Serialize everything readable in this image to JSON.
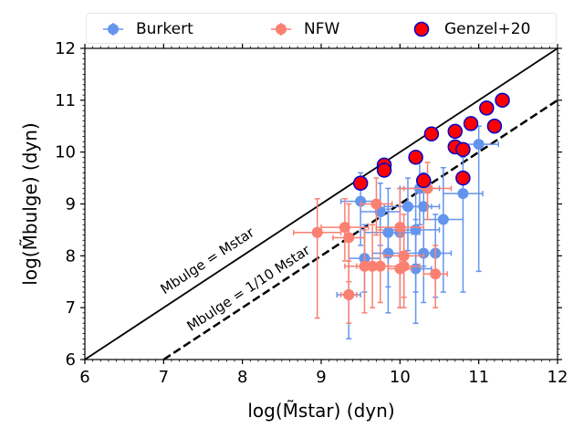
{
  "chart_data": {
    "type": "scatter",
    "title": "",
    "xlabel": "log(M̃star) (dyn)",
    "ylabel": "log(M̃bulge) (dyn)",
    "xlim": [
      6,
      12
    ],
    "ylim": [
      6,
      12
    ],
    "xticks": [
      6,
      7,
      8,
      9,
      10,
      11,
      12
    ],
    "yticks": [
      6,
      7,
      8,
      9,
      10,
      11,
      12
    ],
    "legend": [
      {
        "name": "Burkert",
        "color": "#6495ED"
      },
      {
        "name": "NFW",
        "color": "#FA8072"
      },
      {
        "name": "Genzel+20",
        "color": "#FF0000",
        "edge": "#0000CC"
      }
    ],
    "reference_lines": [
      {
        "label_main": "M",
        "label_sub": "bulge",
        "label_eq": " = M",
        "label_sub2": "star",
        "ratio": 1,
        "style": "solid"
      },
      {
        "label_main": "M",
        "label_sub": "bulge",
        "label_eq": " = ",
        "frac_num": "1",
        "frac_den": "10",
        "label_mid": " M",
        "label_sub2": "star",
        "ratio": 0.1,
        "style": "dashed"
      }
    ],
    "series": [
      {
        "name": "Burkert",
        "color": "#6495ED",
        "points": [
          {
            "x": 9.35,
            "y": 7.25,
            "xerr": 0.15,
            "ylo": 6.4,
            "yhi": 8.3
          },
          {
            "x": 9.5,
            "y": 9.05,
            "xerr": 0.25,
            "ylo": 8.2,
            "yhi": 9.6
          },
          {
            "x": 9.55,
            "y": 7.95,
            "xerr": 0.2,
            "ylo": 7.3,
            "yhi": 8.6
          },
          {
            "x": 9.75,
            "y": 8.85,
            "xerr": 0.25,
            "ylo": 8.2,
            "yhi": 9.4
          },
          {
            "x": 9.85,
            "y": 8.45,
            "xerr": 0.3,
            "ylo": 7.4,
            "yhi": 9.3
          },
          {
            "x": 9.85,
            "y": 8.05,
            "xerr": 0.2,
            "ylo": 6.9,
            "yhi": 8.9
          },
          {
            "x": 10.0,
            "y": 8.45,
            "xerr": 0.25,
            "ylo": 7.0,
            "yhi": 9.3
          },
          {
            "x": 10.1,
            "y": 8.95,
            "xerr": 0.3,
            "ylo": 8.1,
            "yhi": 9.5
          },
          {
            "x": 10.2,
            "y": 8.5,
            "xerr": 0.3,
            "ylo": 7.3,
            "yhi": 9.3
          },
          {
            "x": 10.2,
            "y": 7.75,
            "xerr": 0.2,
            "ylo": 6.7,
            "yhi": 8.7
          },
          {
            "x": 10.25,
            "y": 9.3,
            "xerr": 0.25,
            "ylo": 8.6,
            "yhi": 9.9
          },
          {
            "x": 10.3,
            "y": 8.05,
            "xerr": 0.25,
            "ylo": 7.1,
            "yhi": 8.9
          },
          {
            "x": 10.3,
            "y": 8.95,
            "xerr": 0.2,
            "ylo": 7.8,
            "yhi": 9.6
          },
          {
            "x": 10.45,
            "y": 8.05,
            "xerr": 0.2,
            "ylo": 7.2,
            "yhi": 8.8
          },
          {
            "x": 10.55,
            "y": 8.7,
            "xerr": 0.25,
            "ylo": 7.3,
            "yhi": 9.7
          },
          {
            "x": 10.8,
            "y": 9.2,
            "xerr": 0.25,
            "ylo": 7.3,
            "yhi": 9.9
          },
          {
            "x": 11.0,
            "y": 10.15,
            "xerr": 0.25,
            "ylo": 7.7,
            "yhi": 10.5
          }
        ]
      },
      {
        "name": "NFW",
        "color": "#FA8072",
        "points": [
          {
            "x": 8.95,
            "y": 8.45,
            "xerr": 0.3,
            "ylo": 6.8,
            "yhi": 9.1
          },
          {
            "x": 9.3,
            "y": 8.55,
            "xerr": 0.3,
            "ylo": 7.9,
            "yhi": 9.1
          },
          {
            "x": 9.35,
            "y": 7.25,
            "xerr": 0.1,
            "ylo": 6.7,
            "yhi": 7.9
          },
          {
            "x": 9.35,
            "y": 8.35,
            "xerr": 0.2,
            "ylo": 7.5,
            "yhi": 9.0
          },
          {
            "x": 9.55,
            "y": 7.8,
            "xerr": 0.2,
            "ylo": 6.9,
            "yhi": 8.5
          },
          {
            "x": 9.65,
            "y": 7.8,
            "xerr": 0.35,
            "ylo": 7.0,
            "yhi": 8.6
          },
          {
            "x": 9.7,
            "y": 9.0,
            "xerr": 0.2,
            "ylo": 8.4,
            "yhi": 9.5
          },
          {
            "x": 9.75,
            "y": 7.8,
            "xerr": 0.3,
            "ylo": 7.1,
            "yhi": 8.5
          },
          {
            "x": 10.0,
            "y": 7.75,
            "xerr": 0.15,
            "ylo": 7.0,
            "yhi": 8.4
          },
          {
            "x": 10.0,
            "y": 8.55,
            "xerr": 0.3,
            "ylo": 7.8,
            "yhi": 9.3
          },
          {
            "x": 10.05,
            "y": 8.0,
            "xerr": 0.25,
            "ylo": 7.2,
            "yhi": 8.8
          },
          {
            "x": 10.05,
            "y": 7.8,
            "xerr": 0.2,
            "ylo": 7.0,
            "yhi": 8.5
          },
          {
            "x": 10.35,
            "y": 9.3,
            "xerr": 0.3,
            "ylo": 8.7,
            "yhi": 9.8
          },
          {
            "x": 10.45,
            "y": 7.65,
            "xerr": 0.15,
            "ylo": 7.0,
            "yhi": 8.2
          }
        ]
      },
      {
        "name": "Genzel+20",
        "color": "#FF0000",
        "edge": "#0000CC",
        "points": [
          {
            "x": 9.5,
            "y": 9.4
          },
          {
            "x": 9.8,
            "y": 9.75
          },
          {
            "x": 9.8,
            "y": 9.65
          },
          {
            "x": 10.2,
            "y": 9.9
          },
          {
            "x": 10.3,
            "y": 9.45
          },
          {
            "x": 10.4,
            "y": 10.35
          },
          {
            "x": 10.7,
            "y": 10.1
          },
          {
            "x": 10.7,
            "y": 10.4
          },
          {
            "x": 10.8,
            "y": 10.05
          },
          {
            "x": 10.8,
            "y": 9.5
          },
          {
            "x": 10.9,
            "y": 10.55
          },
          {
            "x": 11.1,
            "y": 10.85
          },
          {
            "x": 11.2,
            "y": 10.5
          },
          {
            "x": 11.3,
            "y": 11.0
          }
        ]
      }
    ]
  }
}
